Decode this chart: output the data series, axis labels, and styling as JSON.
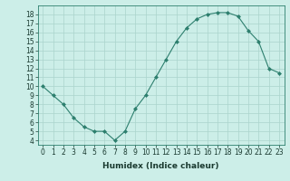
{
  "x": [
    0,
    1,
    2,
    3,
    4,
    5,
    6,
    7,
    8,
    9,
    10,
    11,
    12,
    13,
    14,
    15,
    16,
    17,
    18,
    19,
    20,
    21,
    22,
    23
  ],
  "y": [
    10,
    9,
    8,
    6.5,
    5.5,
    5,
    5,
    4,
    5,
    7.5,
    9,
    11,
    13,
    15,
    16.5,
    17.5,
    18,
    18.2,
    18.2,
    17.8,
    16.2,
    15,
    12,
    11.5
  ],
  "line_color": "#2d7f6e",
  "marker_color": "#2d7f6e",
  "bg_color": "#cceee8",
  "grid_color": "#aad4cc",
  "xlabel": "Humidex (Indice chaleur)",
  "ylim": [
    3.5,
    19
  ],
  "xlim": [
    -0.5,
    23.5
  ],
  "yticks": [
    4,
    5,
    6,
    7,
    8,
    9,
    10,
    11,
    12,
    13,
    14,
    15,
    16,
    17,
    18
  ],
  "xticks": [
    0,
    1,
    2,
    3,
    4,
    5,
    6,
    7,
    8,
    9,
    10,
    11,
    12,
    13,
    14,
    15,
    16,
    17,
    18,
    19,
    20,
    21,
    22,
    23
  ],
  "tick_fontsize": 5.5,
  "label_fontsize": 6.5
}
